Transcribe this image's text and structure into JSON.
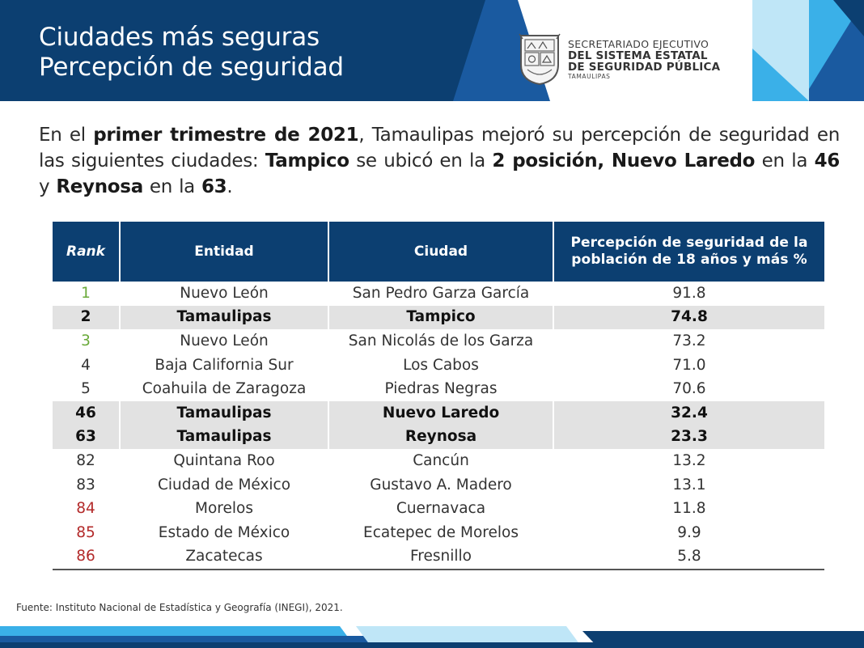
{
  "header": {
    "title_line1": "Ciudades más seguras",
    "title_line2": "Percepción de seguridad",
    "colors": {
      "navy": "#0c3f71",
      "blue": "#1a5aa0",
      "cyan": "#3ab0e8",
      "light": "#bfe6f7"
    },
    "organization": {
      "line1": "SECRETARIADO EJECUTIVO",
      "line2": "DEL SISTEMA ESTATAL",
      "line3": "DE SEGURIDAD PÚBLICA",
      "line4": "TAMAULIPAS",
      "seal_icon": "tamaulipas-coat-of-arms-icon"
    }
  },
  "intro": {
    "t1": "En el ",
    "b1": "primer trimestre de 2021",
    "t2": ", Tamaulipas mejoró su percepción de seguridad en las siguientes ciudades: ",
    "b2": "Tampico",
    "t3": " se ubicó en la ",
    "b3": "2 posición, Nuevo Laredo",
    "t4": " en la ",
    "b4": "46",
    "t5": " y ",
    "b5": "Reynosa",
    "t6": " en la ",
    "b6": "63",
    "t7": "."
  },
  "table": {
    "headers": {
      "rank": "Rank",
      "entidad": "Entidad",
      "ciudad": "Ciudad",
      "percepcion": "Percepción de seguridad de la población de 18 años y más %"
    },
    "rank_colors": {
      "top": "#6aaa3a",
      "normal": "#333333",
      "low": "#b32a2a"
    },
    "rows": [
      {
        "rank": "1",
        "entidad": "Nuevo León",
        "ciudad": "San Pedro Garza García",
        "valor": "91.8",
        "highlight": false,
        "rank_color": "top"
      },
      {
        "rank": "2",
        "entidad": "Tamaulipas",
        "ciudad": "Tampico",
        "valor": "74.8",
        "highlight": true,
        "rank_color": "top"
      },
      {
        "rank": "3",
        "entidad": "Nuevo León",
        "ciudad": "San Nicolás de los Garza",
        "valor": "73.2",
        "highlight": false,
        "rank_color": "top"
      },
      {
        "rank": "4",
        "entidad": "Baja California Sur",
        "ciudad": "Los Cabos",
        "valor": "71.0",
        "highlight": false,
        "rank_color": "normal"
      },
      {
        "rank": "5",
        "entidad": "Coahuila de Zaragoza",
        "ciudad": "Piedras Negras",
        "valor": "70.6",
        "highlight": false,
        "rank_color": "normal"
      },
      {
        "rank": "46",
        "entidad": "Tamaulipas",
        "ciudad": "Nuevo Laredo",
        "valor": "32.4",
        "highlight": true,
        "rank_color": "normal"
      },
      {
        "rank": "63",
        "entidad": "Tamaulipas",
        "ciudad": "Reynosa",
        "valor": "23.3",
        "highlight": true,
        "rank_color": "normal"
      },
      {
        "rank": "82",
        "entidad": "Quintana Roo",
        "ciudad": "Cancún",
        "valor": "13.2",
        "highlight": false,
        "rank_color": "normal"
      },
      {
        "rank": "83",
        "entidad": "Ciudad de México",
        "ciudad": "Gustavo A. Madero",
        "valor": "13.1",
        "highlight": false,
        "rank_color": "normal"
      },
      {
        "rank": "84",
        "entidad": "Morelos",
        "ciudad": "Cuernavaca",
        "valor": "11.8",
        "highlight": false,
        "rank_color": "low"
      },
      {
        "rank": "85",
        "entidad": "Estado de México",
        "ciudad": "Ecatepec de Morelos",
        "valor": "9.9",
        "highlight": false,
        "rank_color": "low"
      },
      {
        "rank": "86",
        "entidad": "Zacatecas",
        "ciudad": "Fresnillo",
        "valor": "5.8",
        "highlight": false,
        "rank_color": "low"
      }
    ]
  },
  "footer": {
    "source": "Fuente: Instituto Nacional de Estadística y Geografía (INEGI), 2021."
  }
}
